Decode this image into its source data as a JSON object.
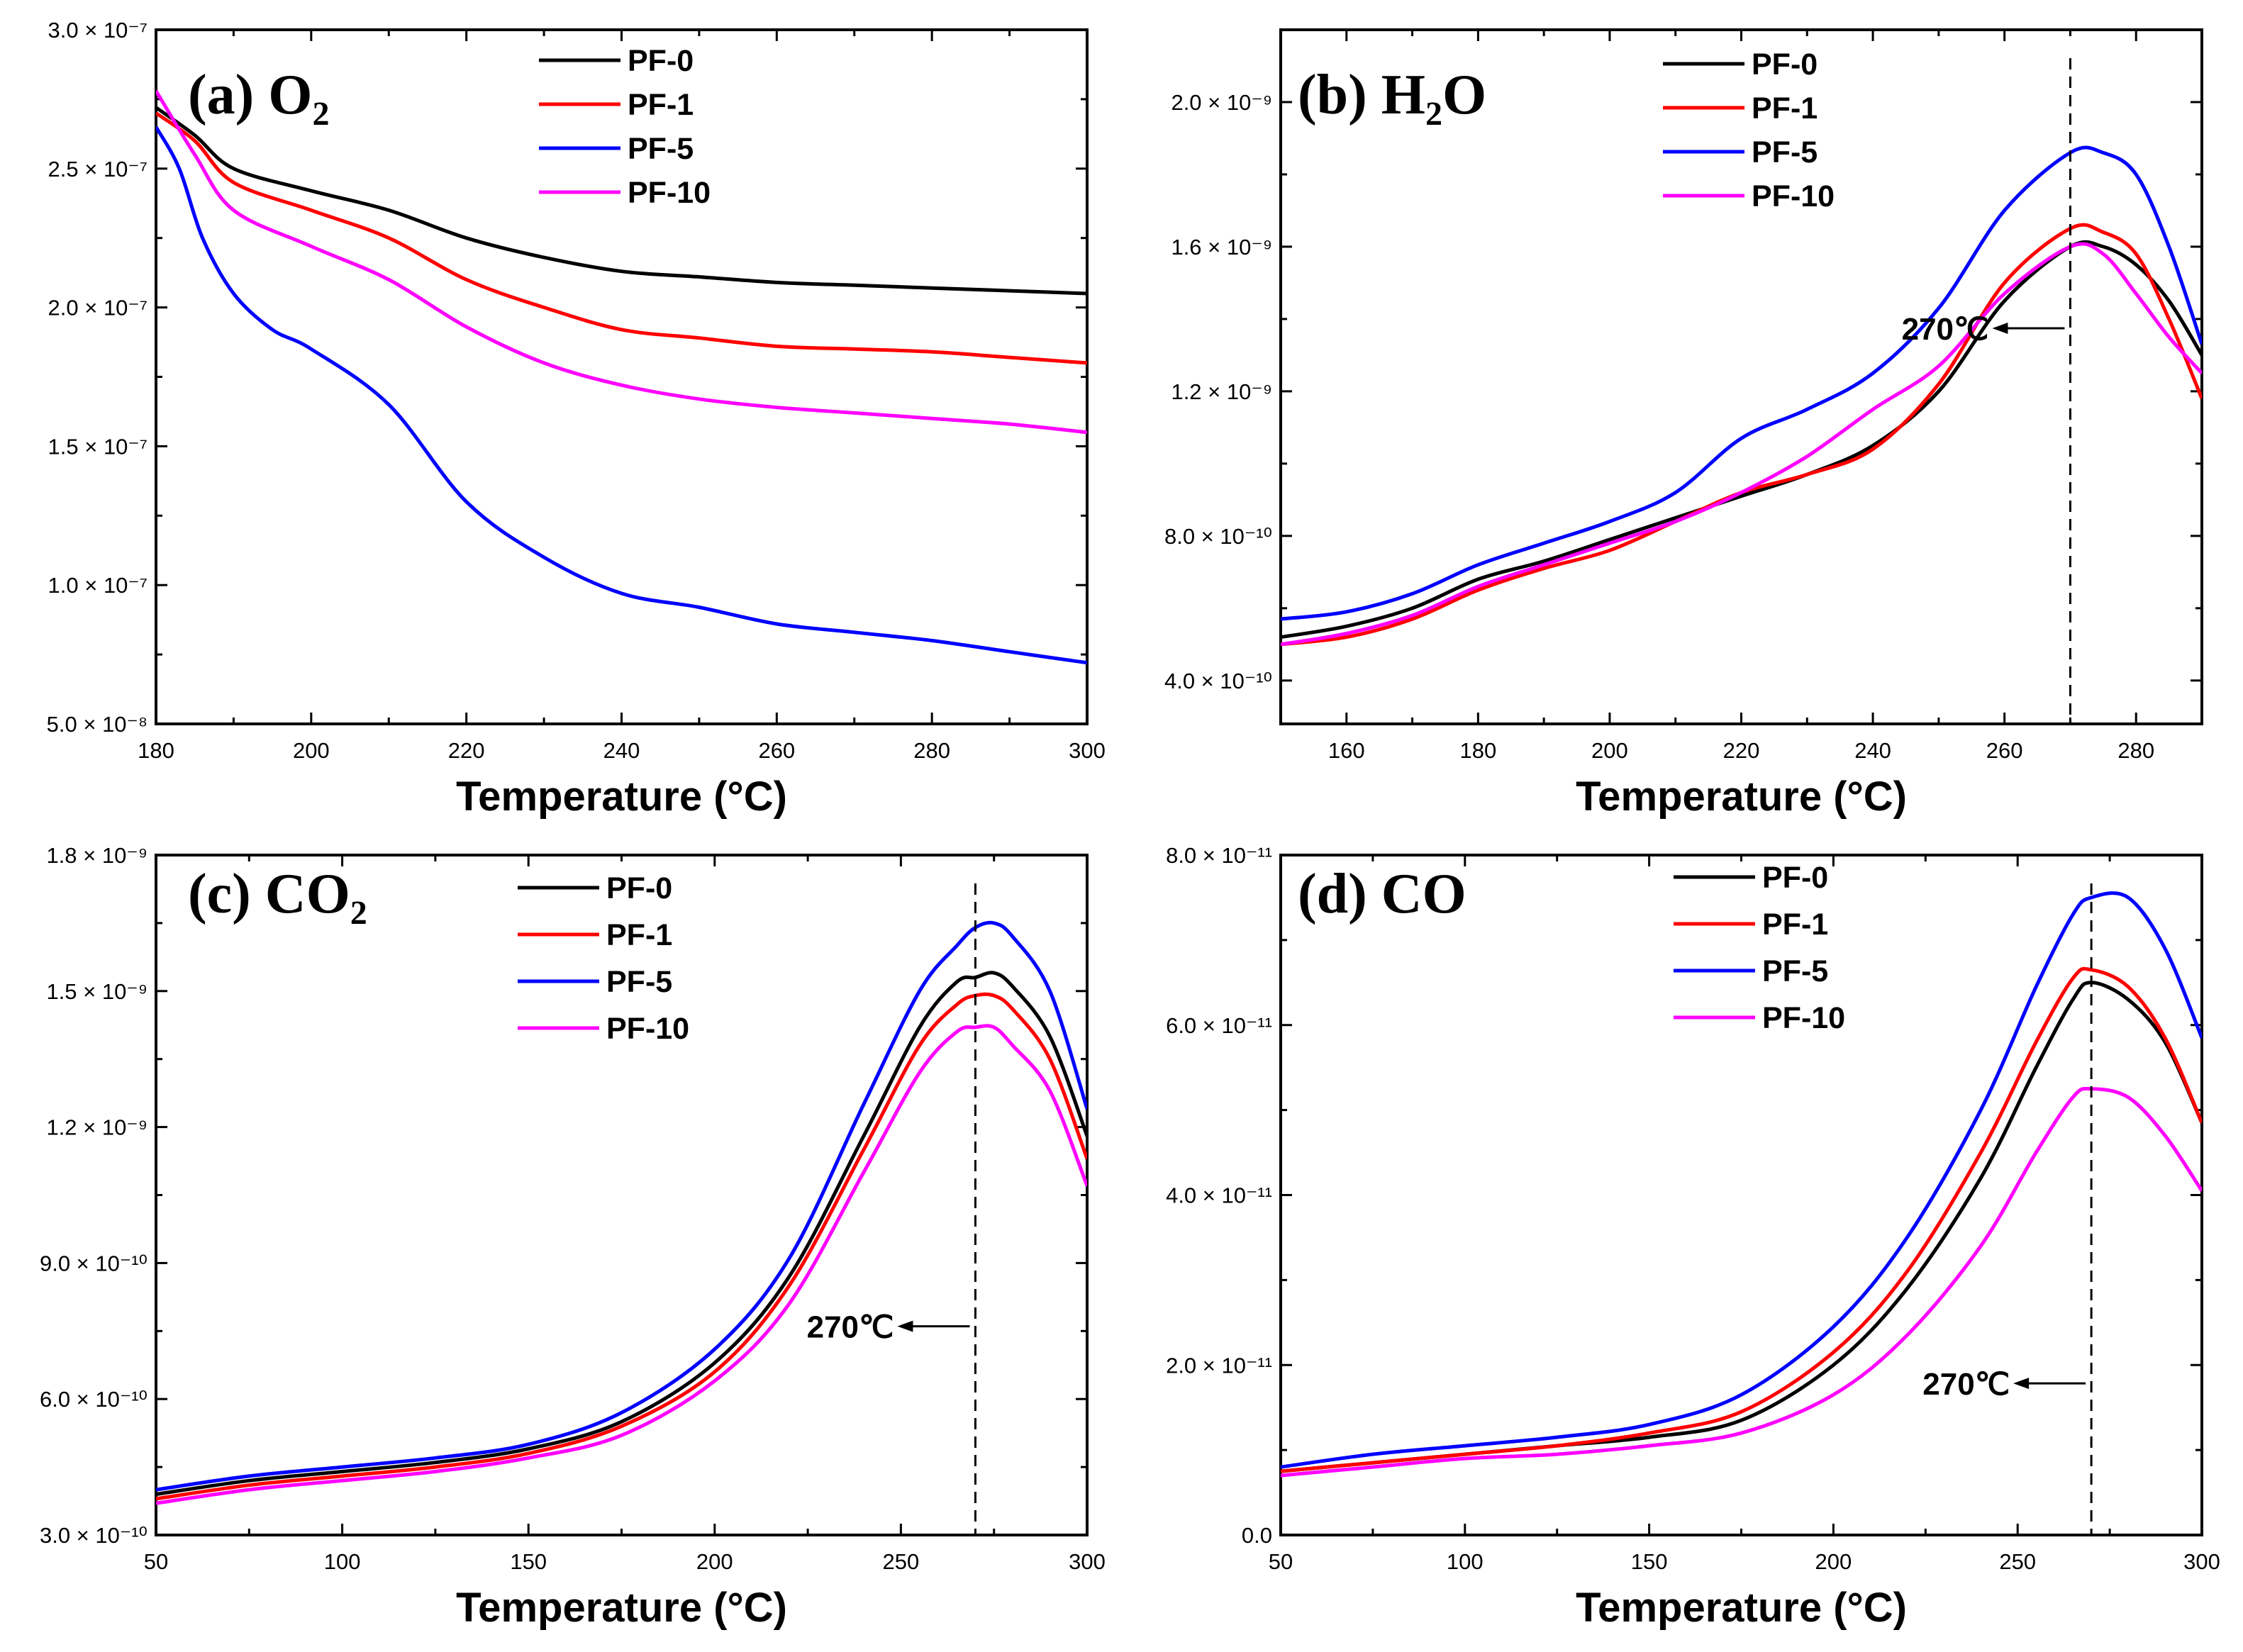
{
  "figure": {
    "title": ""
  },
  "chart_data": [
    {
      "type": "line",
      "panel": "(a)",
      "gas": "O2",
      "title": "(a)  O2",
      "xlabel": "Temperature (°C)",
      "ylabel": "",
      "xlim": [
        180,
        300
      ],
      "ylim": [
        5e-08,
        3e-07
      ],
      "xticks": [
        180,
        200,
        220,
        240,
        260,
        280,
        300
      ],
      "xtick_labels": [
        "180",
        "200",
        "220",
        "240",
        "260",
        "280",
        "300"
      ],
      "yticks": [
        5e-08,
        1e-07,
        1.5e-07,
        2e-07,
        2.5e-07,
        3e-07
      ],
      "ytick_labels": [
        "5.0 × 10⁻⁸",
        "1.0 × 10⁻⁷",
        "1.5 × 10⁻⁷",
        "2.0 × 10⁻⁷",
        "2.5 × 10⁻⁷",
        "3.0 × 10⁻⁷"
      ],
      "legend_position": "top-center",
      "annotation": null,
      "series": [
        {
          "name": "PF-0",
          "color": "#000000",
          "x": [
            180,
            185,
            190,
            200,
            210,
            220,
            230,
            240,
            250,
            260,
            270,
            280,
            290,
            300
          ],
          "y": [
            2.72e-07,
            2.62e-07,
            2.5e-07,
            2.42e-07,
            2.35e-07,
            2.25e-07,
            2.18e-07,
            2.13e-07,
            2.11e-07,
            2.09e-07,
            2.08e-07,
            2.07e-07,
            2.06e-07,
            2.05e-07
          ]
        },
        {
          "name": "PF-1",
          "color": "#ff0000",
          "x": [
            180,
            185,
            190,
            200,
            210,
            220,
            230,
            240,
            250,
            260,
            270,
            280,
            290,
            300
          ],
          "y": [
            2.7e-07,
            2.6e-07,
            2.45e-07,
            2.35e-07,
            2.25e-07,
            2.1e-07,
            2e-07,
            1.92e-07,
            1.89e-07,
            1.86e-07,
            1.85e-07,
            1.84e-07,
            1.82e-07,
            1.8e-07
          ]
        },
        {
          "name": "PF-5",
          "color": "#0000ff",
          "x": [
            180,
            183,
            186,
            190,
            195,
            200,
            210,
            220,
            230,
            240,
            250,
            260,
            270,
            280,
            290,
            300
          ],
          "y": [
            2.65e-07,
            2.5e-07,
            2.25e-07,
            2.05e-07,
            1.92e-07,
            1.85e-07,
            1.65e-07,
            1.3e-07,
            1.1e-07,
            9.7e-08,
            9.2e-08,
            8.6e-08,
            8.3e-08,
            8e-08,
            7.6e-08,
            7.2e-08
          ]
        },
        {
          "name": "PF-10",
          "color": "#ff00ff",
          "x": [
            180,
            185,
            190,
            200,
            210,
            220,
            230,
            240,
            250,
            260,
            270,
            280,
            290,
            300
          ],
          "y": [
            2.78e-07,
            2.55e-07,
            2.35e-07,
            2.22e-07,
            2.1e-07,
            1.93e-07,
            1.8e-07,
            1.72e-07,
            1.67e-07,
            1.64e-07,
            1.62e-07,
            1.6e-07,
            1.58e-07,
            1.55e-07
          ]
        }
      ]
    },
    {
      "type": "line",
      "panel": "(b)",
      "gas": "H2O",
      "title": "(b)  H2O",
      "xlabel": "Temperature (°C)",
      "ylabel": "",
      "xlim": [
        150,
        290
      ],
      "ylim": [
        2.8e-10,
        2.2e-09
      ],
      "xticks": [
        160,
        180,
        200,
        220,
        240,
        260,
        280
      ],
      "xtick_labels": [
        "160",
        "180",
        "200",
        "220",
        "240",
        "260",
        "280"
      ],
      "yticks": [
        4e-10,
        8e-10,
        1.2e-09,
        1.6e-09,
        2e-09
      ],
      "ytick_labels": [
        "4.0 × 10⁻¹⁰",
        "8.0 × 10⁻¹⁰",
        "1.2 × 10⁻⁹",
        "1.6 × 10⁻⁹",
        "2.0 × 10⁻⁹"
      ],
      "legend_position": "top-center",
      "annotation": {
        "text": "270℃",
        "x": 270
      },
      "series": [
        {
          "name": "PF-0",
          "color": "#000000",
          "x": [
            150,
            160,
            170,
            180,
            190,
            200,
            210,
            220,
            230,
            240,
            250,
            260,
            270,
            275,
            280,
            285,
            290
          ],
          "y": [
            5.2e-10,
            5.5e-10,
            6e-10,
            6.8e-10,
            7.3e-10,
            7.9e-10,
            8.5e-10,
            9.1e-10,
            9.7e-10,
            1.05e-09,
            1.2e-09,
            1.45e-09,
            1.6e-09,
            1.6e-09,
            1.55e-09,
            1.45e-09,
            1.3e-09
          ]
        },
        {
          "name": "PF-1",
          "color": "#ff0000",
          "x": [
            150,
            160,
            170,
            180,
            190,
            200,
            210,
            220,
            230,
            240,
            250,
            260,
            270,
            275,
            280,
            285,
            290
          ],
          "y": [
            5e-10,
            5.2e-10,
            5.7e-10,
            6.5e-10,
            7.1e-10,
            7.6e-10,
            8.4e-10,
            9.2e-10,
            9.7e-10,
            1.04e-09,
            1.22e-09,
            1.5e-09,
            1.65e-09,
            1.64e-09,
            1.58e-09,
            1.4e-09,
            1.18e-09
          ]
        },
        {
          "name": "PF-5",
          "color": "#0000ff",
          "x": [
            150,
            160,
            170,
            180,
            190,
            200,
            210,
            220,
            230,
            240,
            250,
            260,
            270,
            275,
            280,
            285,
            290
          ],
          "y": [
            5.7e-10,
            5.9e-10,
            6.4e-10,
            7.2e-10,
            7.8e-10,
            8.4e-10,
            9.2e-10,
            1.07e-09,
            1.15e-09,
            1.25e-09,
            1.43e-09,
            1.7e-09,
            1.86e-09,
            1.86e-09,
            1.8e-09,
            1.6e-09,
            1.33e-09
          ]
        },
        {
          "name": "PF-10",
          "color": "#ff00ff",
          "x": [
            150,
            160,
            170,
            180,
            190,
            200,
            210,
            220,
            230,
            240,
            250,
            260,
            270,
            275,
            280,
            285,
            290
          ],
          "y": [
            5e-10,
            5.3e-10,
            5.8e-10,
            6.6e-10,
            7.2e-10,
            7.8e-10,
            8.4e-10,
            9.2e-10,
            1.02e-09,
            1.15e-09,
            1.27e-09,
            1.47e-09,
            1.6e-09,
            1.58e-09,
            1.47e-09,
            1.35e-09,
            1.25e-09
          ]
        }
      ]
    },
    {
      "type": "line",
      "panel": "(c)",
      "gas": "CO2",
      "title": "(c)  CO2",
      "xlabel": "Temperature (°C)",
      "ylabel": "",
      "xlim": [
        50,
        300
      ],
      "ylim": [
        3e-10,
        1.8e-09
      ],
      "xticks": [
        50,
        100,
        150,
        200,
        250,
        300
      ],
      "xtick_labels": [
        "50",
        "100",
        "150",
        "200",
        "250",
        "300"
      ],
      "yticks": [
        3e-10,
        6e-10,
        9e-10,
        1.2e-09,
        1.5e-09,
        1.8e-09
      ],
      "ytick_labels": [
        "3.0 × 10⁻¹⁰",
        "6.0 × 10⁻¹⁰",
        "9.0 × 10⁻¹⁰",
        "1.2 × 10⁻⁹",
        "1.5 × 10⁻⁹",
        "1.8 × 10⁻⁹"
      ],
      "legend_position": "top-center",
      "annotation": {
        "text": "270℃",
        "x": 270
      },
      "series": [
        {
          "name": "PF-0",
          "color": "#000000",
          "x": [
            50,
            75,
            100,
            125,
            150,
            175,
            200,
            220,
            240,
            255,
            265,
            270,
            275,
            280,
            290,
            300
          ],
          "y": [
            3.9e-10,
            4.2e-10,
            4.4e-10,
            4.6e-10,
            4.9e-10,
            5.5e-10,
            6.8e-10,
            8.7e-10,
            1.18e-09,
            1.42e-09,
            1.52e-09,
            1.53e-09,
            1.54e-09,
            1.51e-09,
            1.4e-09,
            1.18e-09
          ]
        },
        {
          "name": "PF-1",
          "color": "#ff0000",
          "x": [
            50,
            75,
            100,
            125,
            150,
            175,
            200,
            220,
            240,
            255,
            265,
            270,
            275,
            280,
            290,
            300
          ],
          "y": [
            3.8e-10,
            4.1e-10,
            4.3e-10,
            4.5e-10,
            4.8e-10,
            5.4e-10,
            6.6e-10,
            8.5e-10,
            1.15e-09,
            1.38e-09,
            1.47e-09,
            1.49e-09,
            1.49e-09,
            1.46e-09,
            1.35e-09,
            1.13e-09
          ]
        },
        {
          "name": "PF-5",
          "color": "#0000ff",
          "x": [
            50,
            75,
            100,
            125,
            150,
            175,
            200,
            220,
            240,
            255,
            265,
            270,
            275,
            280,
            290,
            300
          ],
          "y": [
            4e-10,
            4.3e-10,
            4.5e-10,
            4.7e-10,
            5e-10,
            5.7e-10,
            7.1e-10,
            9.1e-10,
            1.25e-09,
            1.5e-09,
            1.6e-09,
            1.64e-09,
            1.65e-09,
            1.62e-09,
            1.5e-09,
            1.24e-09
          ]
        },
        {
          "name": "PF-10",
          "color": "#ff00ff",
          "x": [
            50,
            75,
            100,
            125,
            150,
            175,
            200,
            220,
            240,
            255,
            265,
            270,
            275,
            280,
            290,
            300
          ],
          "y": [
            3.7e-10,
            4e-10,
            4.2e-10,
            4.4e-10,
            4.7e-10,
            5.2e-10,
            6.4e-10,
            8.1e-10,
            1.1e-09,
            1.32e-09,
            1.41e-09,
            1.42e-09,
            1.42e-09,
            1.38e-09,
            1.28e-09,
            1.07e-09
          ]
        }
      ]
    },
    {
      "type": "line",
      "panel": "(d)",
      "gas": "CO",
      "title": "(d)  CO",
      "xlabel": "Temperature (°C)",
      "ylabel": "",
      "xlim": [
        50,
        300
      ],
      "ylim": [
        0,
        8e-11
      ],
      "xticks": [
        50,
        100,
        150,
        200,
        250,
        300
      ],
      "xtick_labels": [
        "50",
        "100",
        "150",
        "200",
        "250",
        "300"
      ],
      "yticks": [
        0,
        2e-11,
        4e-11,
        6e-11,
        8e-11
      ],
      "ytick_labels": [
        "0.0",
        "2.0 × 10⁻¹¹",
        "4.0 × 10⁻¹¹",
        "6.0 × 10⁻¹¹",
        "8.0 × 10⁻¹¹"
      ],
      "legend_position": "top-center",
      "annotation": {
        "text": "270℃",
        "x": 270
      },
      "series": [
        {
          "name": "PF-0",
          "color": "#000000",
          "x": [
            50,
            75,
            100,
            125,
            150,
            175,
            200,
            220,
            240,
            255,
            265,
            270,
            280,
            290,
            300
          ],
          "y": [
            7.5e-12,
            8.5e-12,
            9.5e-12,
            1.05e-11,
            1.15e-11,
            1.35e-11,
            2e-11,
            2.9e-11,
            4.2e-11,
            5.5e-11,
            6.3e-11,
            6.5e-11,
            6.3e-11,
            5.8e-11,
            4.85e-11
          ]
        },
        {
          "name": "PF-1",
          "color": "#ff0000",
          "x": [
            50,
            75,
            100,
            125,
            150,
            175,
            200,
            220,
            240,
            255,
            265,
            270,
            280,
            290,
            300
          ],
          "y": [
            7.5e-12,
            8.5e-12,
            9.5e-12,
            1.05e-11,
            1.2e-11,
            1.45e-11,
            2.15e-11,
            3.1e-11,
            4.5e-11,
            5.8e-11,
            6.55e-11,
            6.65e-11,
            6.45e-11,
            5.85e-11,
            4.85e-11
          ]
        },
        {
          "name": "PF-5",
          "color": "#0000ff",
          "x": [
            50,
            75,
            100,
            125,
            150,
            175,
            200,
            220,
            240,
            255,
            265,
            270,
            280,
            290,
            300
          ],
          "y": [
            8e-12,
            9.5e-12,
            1.05e-11,
            1.15e-11,
            1.3e-11,
            1.65e-11,
            2.45e-11,
            3.5e-11,
            5e-11,
            6.45e-11,
            7.3e-11,
            7.5e-11,
            7.5e-11,
            6.9e-11,
            5.85e-11
          ]
        },
        {
          "name": "PF-10",
          "color": "#ff00ff",
          "x": [
            50,
            75,
            100,
            125,
            150,
            175,
            200,
            220,
            240,
            255,
            265,
            270,
            280,
            290,
            300
          ],
          "y": [
            7e-12,
            8e-12,
            9e-12,
            9.5e-12,
            1.05e-11,
            1.2e-11,
            1.65e-11,
            2.35e-11,
            3.4e-11,
            4.5e-11,
            5.15e-11,
            5.25e-11,
            5.15e-11,
            4.7e-11,
            4.05e-11
          ]
        }
      ]
    }
  ]
}
